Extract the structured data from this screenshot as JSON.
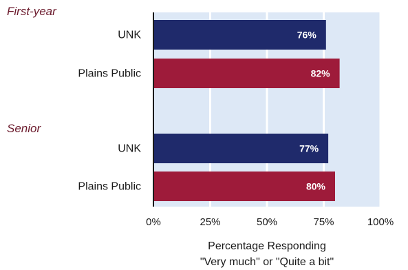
{
  "chart_data": {
    "type": "bar",
    "orientation": "horizontal",
    "groups": [
      {
        "label": "First-year",
        "bars": [
          {
            "category": "UNK",
            "value": 76,
            "value_label": "76%",
            "color": "#1f2a6b"
          },
          {
            "category": "Plains Public",
            "value": 82,
            "value_label": "82%",
            "color": "#9e1b3a"
          }
        ]
      },
      {
        "label": "Senior",
        "bars": [
          {
            "category": "UNK",
            "value": 77,
            "value_label": "77%",
            "color": "#1f2a6b"
          },
          {
            "category": "Plains Public",
            "value": 80,
            "value_label": "80%",
            "color": "#9e1b3a"
          }
        ]
      }
    ],
    "xlim": [
      0,
      100
    ],
    "x_ticks": [
      "0%",
      "25%",
      "50%",
      "75%",
      "100%"
    ],
    "xlabel_line1": "Percentage Responding",
    "xlabel_line2": "\"Very much\" or \"Quite a bit\"",
    "grid": true,
    "plot_background": "#dde8f6"
  }
}
